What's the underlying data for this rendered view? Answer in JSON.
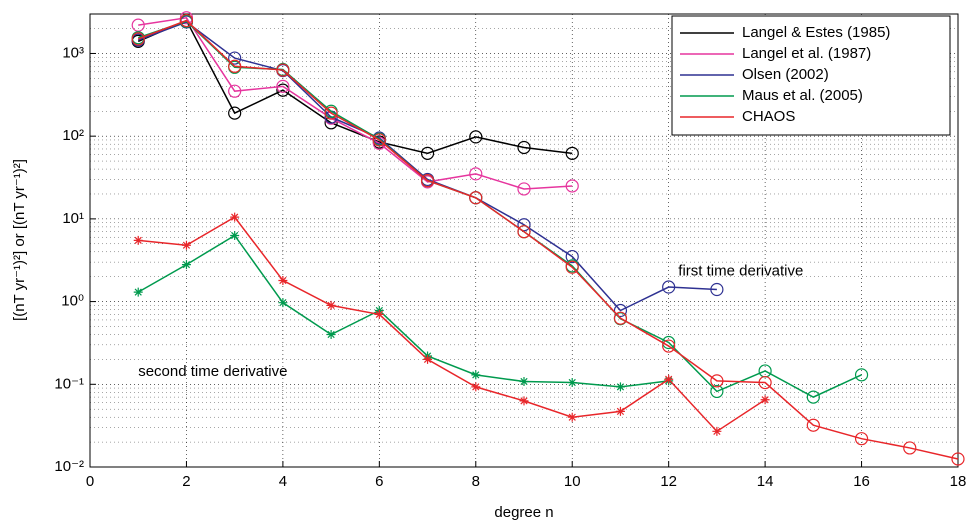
{
  "chart_data": {
    "type": "line",
    "y_label": "[(nT yr⁻¹)²] or [(nT yr⁻¹)²]",
    "x_label": "degree n",
    "annotations": [
      "first time derivative",
      "second time derivative"
    ],
    "x": [
      1,
      2,
      3,
      4,
      5,
      6,
      7,
      8,
      9,
      10,
      11,
      12,
      13,
      14,
      15,
      16,
      17,
      18
    ],
    "xlim": [
      0,
      18
    ],
    "xticks": [
      0,
      2,
      4,
      6,
      8,
      10,
      12,
      14,
      16,
      18
    ],
    "ylim": [
      0.01,
      3000
    ],
    "ylog": true,
    "yticks": [
      {
        "value": 0.01,
        "label": "10⁻²"
      },
      {
        "value": 0.1,
        "label": "10⁻¹"
      },
      {
        "value": 1,
        "label": "10⁰"
      },
      {
        "value": 10,
        "label": "10¹"
      },
      {
        "value": 100,
        "label": "10²"
      },
      {
        "value": 1000,
        "label": "10³"
      }
    ],
    "grid": true,
    "legend": "upper right",
    "series": [
      {
        "name": "Langel & Estes (1985)",
        "color": "#000000",
        "marker": "circle",
        "values": [
          1400,
          2500,
          190,
          360,
          145,
          85,
          62,
          98,
          73,
          62,
          null,
          null,
          null,
          null,
          null,
          null,
          null,
          null
        ]
      },
      {
        "name": "Langel et al. (1987)",
        "color": "#e6359e",
        "marker": "circle",
        "values": [
          2200,
          2700,
          350,
          400,
          165,
          82,
          28,
          35,
          23,
          25,
          null,
          null,
          null,
          null,
          null,
          null,
          null,
          null
        ]
      },
      {
        "name": "Olsen (2002)",
        "color": "#2e3192",
        "marker": "circle",
        "values": [
          1450,
          2400,
          880,
          620,
          170,
          95,
          30,
          18,
          8.5,
          3.5,
          0.78,
          1.5,
          1.4,
          null,
          null,
          null,
          null,
          null
        ]
      },
      {
        "name": "Maus et al. (2005)",
        "color": "#009a4e",
        "marker": "circle",
        "values": [
          1550,
          2450,
          680,
          640,
          200,
          92,
          29,
          18,
          7,
          2.7,
          0.62,
          0.32,
          0.082,
          0.145,
          0.07,
          0.13,
          null,
          null
        ]
      },
      {
        "name": "CHAOS",
        "color": "#e8262a",
        "marker": "circle",
        "values": [
          1500,
          2500,
          700,
          630,
          190,
          90,
          29,
          18,
          7,
          2.6,
          0.63,
          0.29,
          0.11,
          0.105,
          0.032,
          0.022,
          0.017,
          0.0125
        ]
      },
      {
        "name": "Maus et al. (2005)",
        "color": "#009a4e",
        "marker": "star",
        "values": [
          1.3,
          2.8,
          6.3,
          0.97,
          0.4,
          0.78,
          0.22,
          0.13,
          0.108,
          0.105,
          0.093,
          0.11,
          null,
          null,
          null,
          null,
          null,
          null
        ]
      },
      {
        "name": "CHAOS",
        "color": "#e8262a",
        "marker": "star",
        "values": [
          5.5,
          4.8,
          10.5,
          1.8,
          0.9,
          0.7,
          0.2,
          0.093,
          0.063,
          0.04,
          0.047,
          0.115,
          0.027,
          0.065,
          null,
          null,
          null,
          null
        ]
      }
    ]
  }
}
